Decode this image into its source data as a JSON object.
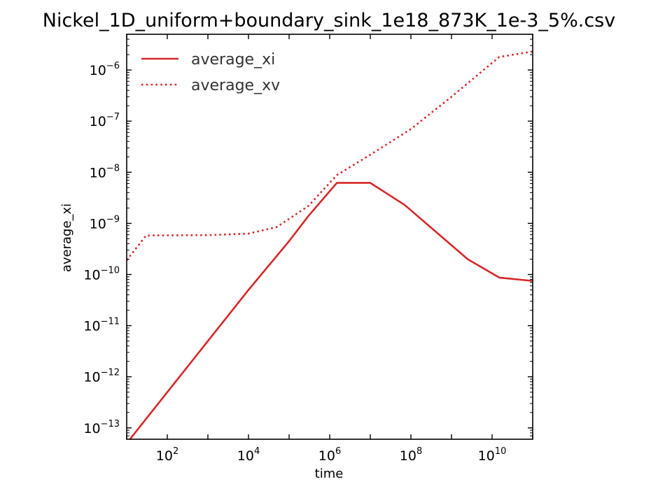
{
  "chart_data": {
    "type": "line",
    "title": "Nickel_1D_uniform+boundary_sink_1e18_873K_1e-3_5%.csv",
    "xlabel": "time",
    "ylabel": "average_xi",
    "xscale": "log",
    "yscale": "log",
    "xlim": [
      10,
      100000000000
    ],
    "ylim": [
      6e-14,
      5e-06
    ],
    "x_ticks": [
      {
        "value": 100,
        "base": "10",
        "exp": "2"
      },
      {
        "value": 10000,
        "base": "10",
        "exp": "4"
      },
      {
        "value": 1000000,
        "base": "10",
        "exp": "6"
      },
      {
        "value": 100000000,
        "base": "10",
        "exp": "8"
      },
      {
        "value": 10000000000,
        "base": "10",
        "exp": "10"
      }
    ],
    "y_ticks": [
      {
        "value": 1e-13,
        "base": "10",
        "exp": "−13"
      },
      {
        "value": 1e-12,
        "base": "10",
        "exp": "−12"
      },
      {
        "value": 1e-11,
        "base": "10",
        "exp": "−11"
      },
      {
        "value": 1e-10,
        "base": "10",
        "exp": "−10"
      },
      {
        "value": 1e-09,
        "base": "10",
        "exp": "−9"
      },
      {
        "value": 1e-08,
        "base": "10",
        "exp": "−8"
      },
      {
        "value": 1e-07,
        "base": "10",
        "exp": "−7"
      },
      {
        "value": 1e-06,
        "base": "10",
        "exp": "−6"
      }
    ],
    "grid": false,
    "legend_position": "top-left",
    "series": [
      {
        "name": "average_xi",
        "color": "#d62728",
        "style": "solid",
        "x": [
          10,
          100,
          1000,
          10000,
          100000,
          300000,
          1500000,
          10000000,
          70000000,
          2500000000,
          15000000000,
          100000000000
        ],
        "y": [
          5e-14,
          5e-13,
          5e-12,
          5e-11,
          4.5e-10,
          1.4e-09,
          6.2e-09,
          6.2e-09,
          2.3e-09,
          2e-10,
          8.7e-11,
          7.5e-11
        ]
      },
      {
        "name": "average_xv",
        "color": "#d62728",
        "style": "dotted",
        "x": [
          10,
          30,
          1000,
          10000,
          50000,
          300000,
          1500000,
          10000000,
          100000000,
          1000000000,
          15000000000,
          100000000000
        ],
        "y": [
          1.9e-10,
          5.8e-10,
          5.9e-10,
          6.3e-10,
          8.5e-10,
          2.2e-09,
          8.8e-09,
          2.2e-08,
          7e-08,
          3e-07,
          1.8e-06,
          2.3e-06
        ]
      }
    ]
  }
}
